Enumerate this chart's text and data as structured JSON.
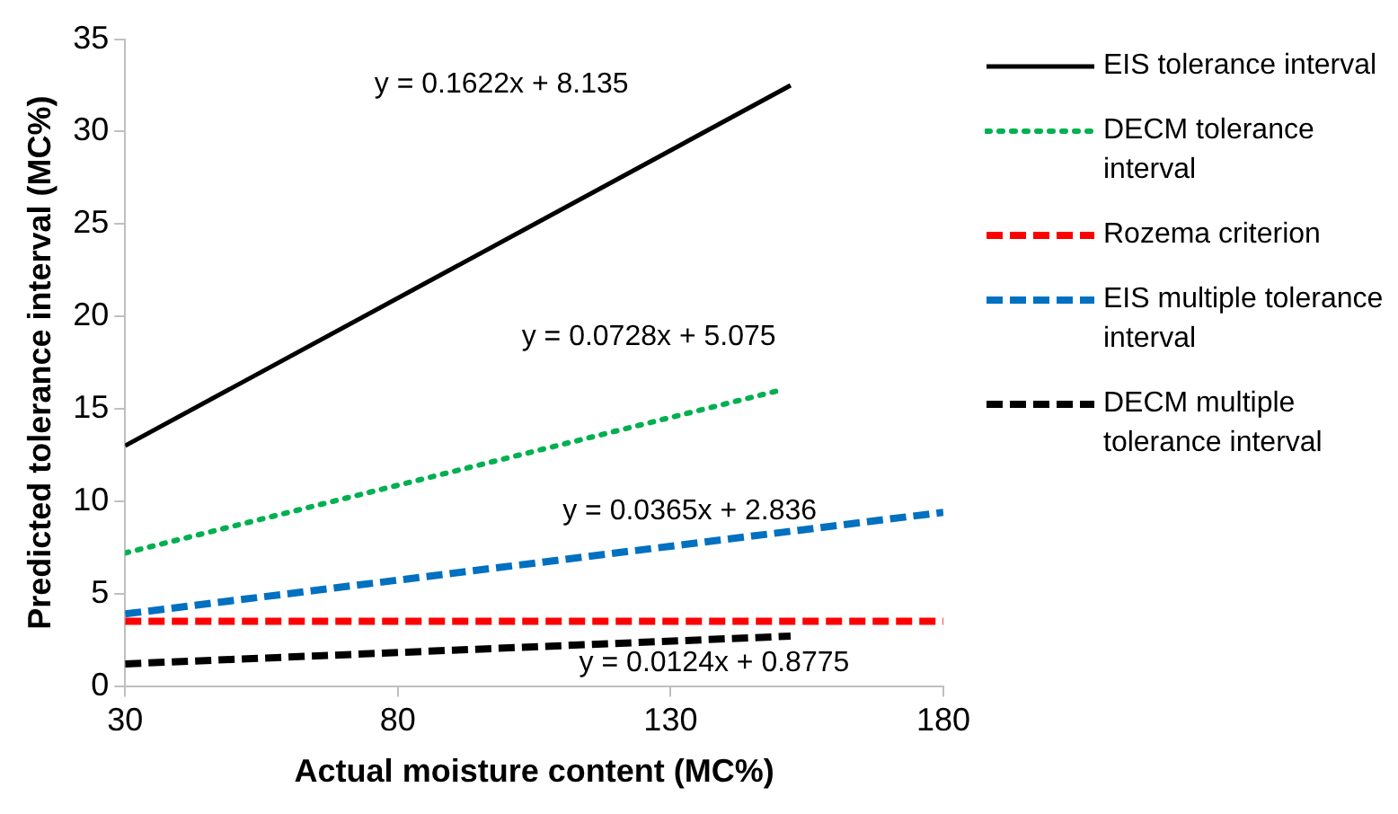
{
  "chart_data": {
    "type": "line",
    "xlabel": "Actual moisture content (MC%)",
    "ylabel": "Predicted tolerance interval (MC%)",
    "xlim": [
      30,
      180
    ],
    "xticks": [
      30,
      80,
      130,
      180
    ],
    "ylim": [
      0,
      35
    ],
    "yticks": [
      0,
      5,
      10,
      15,
      20,
      25,
      30,
      35
    ],
    "grid": false,
    "legend": "right",
    "marker": "none",
    "series": [
      {
        "name": "EIS tolerance interval",
        "color": "#000000",
        "line_style": "solid",
        "x": [
          30,
          152
        ],
        "values": [
          13,
          32.5
        ]
      },
      {
        "name": "DECM tolerance interval",
        "color": "#00b050",
        "line_style": "dotted",
        "x": [
          30,
          150
        ],
        "values": [
          7.2,
          16
        ]
      },
      {
        "name": "Rozema criterion",
        "color": "#ff0000",
        "line_style": "dashed",
        "x": [
          30,
          180
        ],
        "values": [
          3.5,
          3.5
        ]
      },
      {
        "name": "EIS multiple tolerance interval",
        "color": "#0070c0",
        "line_style": "dashed",
        "x": [
          30,
          180
        ],
        "values": [
          3.9,
          9.4
        ]
      },
      {
        "name": "DECM multiple tolerance interval",
        "color": "#000000",
        "line_style": "dashed",
        "x": [
          30,
          152
        ],
        "values": [
          1.2,
          2.7
        ]
      }
    ],
    "annotations": [
      "y = 0.1622x + 8.135",
      "y = 0.0728x + 5.075",
      "y = 0.0365x + 2.836",
      "y = 0.0124x + 0.8775"
    ]
  }
}
